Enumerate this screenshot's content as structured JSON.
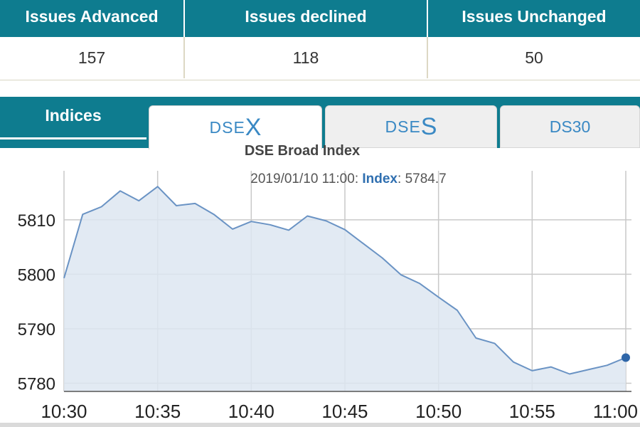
{
  "stats": {
    "headers": [
      "Issues Advanced",
      "Issues declined",
      "Issues Unchanged"
    ],
    "values": [
      "157",
      "118",
      "50"
    ]
  },
  "tabs": {
    "indices_label": "Indices",
    "dsex": {
      "small": "DSE",
      "big": "X"
    },
    "dses": {
      "small": "DSE",
      "big": "S"
    },
    "ds30": "DS30"
  },
  "tooltip": {
    "datetime": "2019/01/10 11:00",
    "series": "Index",
    "value": "5784.7"
  },
  "colors": {
    "header_bg": "#0e7c8f",
    "tab_text": "#3a89c4",
    "line": "#6a93c4",
    "area_fill": "#dde6f1",
    "marker": "#2f66a8"
  },
  "chart_data": {
    "type": "area",
    "title": "DSE Broad Index",
    "x_tick_labels": [
      "10:30",
      "10:35",
      "10:40",
      "10:45",
      "10:50",
      "10:55",
      "11:00"
    ],
    "y_tick_labels": [
      "5780",
      "5790",
      "5800",
      "5810"
    ],
    "xlim": [
      "10:30",
      "11:00"
    ],
    "ylim": [
      5778.5,
      5819
    ],
    "grid": true,
    "series": [
      {
        "x": [
          "10:30",
          "10:31",
          "10:32",
          "10:33",
          "10:34",
          "10:35",
          "10:36",
          "10:37",
          "10:38",
          "10:39",
          "10:40",
          "10:41",
          "10:42",
          "10:43",
          "10:44",
          "10:45",
          "10:46",
          "10:47",
          "10:48",
          "10:49",
          "10:50",
          "10:51",
          "10:52",
          "10:53",
          "10:54",
          "10:55",
          "10:56",
          "10:57",
          "10:58",
          "10:59",
          "11:00"
        ],
        "values": [
          5799.3,
          5811.0,
          5812.4,
          5815.3,
          5813.5,
          5816.1,
          5812.6,
          5813.0,
          5811.0,
          5808.3,
          5809.7,
          5809.1,
          5808.1,
          5810.7,
          5809.8,
          5808.2,
          5805.6,
          5803.0,
          5799.9,
          5798.3,
          5795.8,
          5793.4,
          5788.3,
          5787.3,
          5783.9,
          5782.3,
          5783.0,
          5781.7,
          5782.5,
          5783.3,
          5784.7
        ]
      }
    ]
  }
}
